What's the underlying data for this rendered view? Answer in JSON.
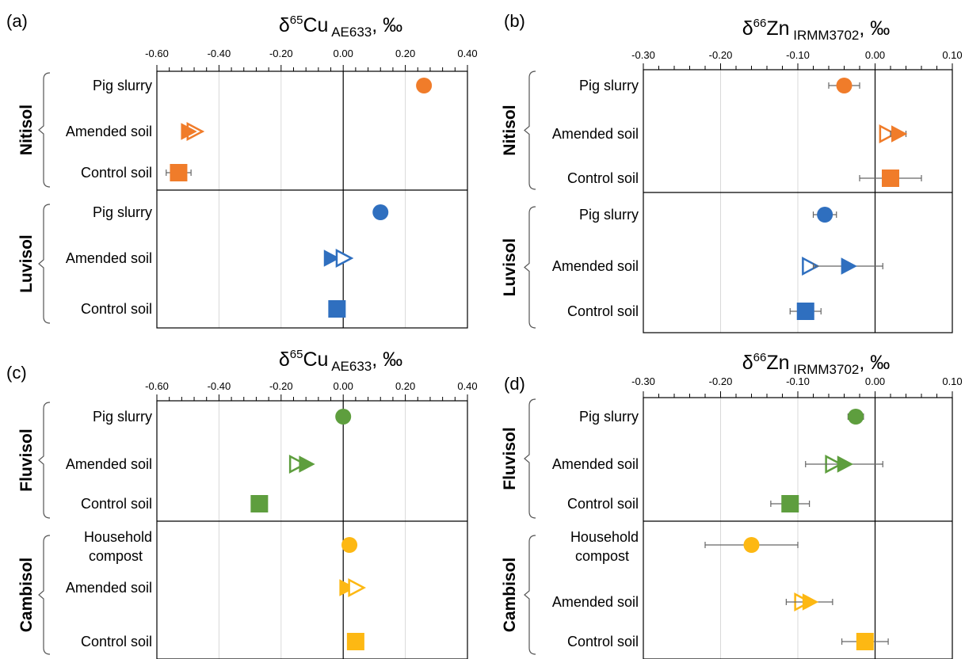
{
  "chart_data": [
    {
      "type": "scatter",
      "panel": "(a)",
      "xlabel": {
        "symbol": "δ",
        "sup": "65",
        "base": "Cu",
        "sub": "AE633",
        "unit": ", ‰"
      },
      "xlim": [
        -0.6,
        0.4
      ],
      "xticks": [
        "-0.60",
        "-0.40",
        "-0.20",
        "0.00",
        "0.20",
        "0.40"
      ],
      "grid": true,
      "groups": [
        {
          "name": "Nitisol",
          "color": "#F07C2A",
          "items": [
            {
              "label": [
                "Pig slurry"
              ],
              "points": [
                {
                  "x": 0.26,
                  "marker": "circle",
                  "err": 0.0
                }
              ]
            },
            {
              "label": [
                "Amended soil"
              ],
              "points": [
                {
                  "x": -0.48,
                  "marker": "triangle-open",
                  "err": 0.0
                },
                {
                  "x": -0.5,
                  "marker": "triangle-filled",
                  "err": 0.0
                }
              ]
            },
            {
              "label": [
                "Control soil"
              ],
              "points": [
                {
                  "x": -0.53,
                  "marker": "square",
                  "err": 0.04
                }
              ]
            }
          ]
        },
        {
          "name": "Luvisol",
          "color": "#2F6FBF",
          "items": [
            {
              "label": [
                "Pig slurry"
              ],
              "points": [
                {
                  "x": 0.12,
                  "marker": "circle",
                  "err": 0.02
                }
              ]
            },
            {
              "label": [
                "Amended soil"
              ],
              "points": [
                {
                  "x": -0.04,
                  "marker": "triangle-filled",
                  "err": 0.0
                },
                {
                  "x": -0.0,
                  "marker": "triangle-open",
                  "err": 0.0
                }
              ]
            },
            {
              "label": [
                "Control soil"
              ],
              "points": [
                {
                  "x": -0.02,
                  "marker": "square",
                  "err": 0.0
                }
              ]
            }
          ]
        }
      ]
    },
    {
      "type": "scatter",
      "panel": "(b)",
      "xlabel": {
        "symbol": "δ",
        "sup": "66",
        "base": "Zn",
        "sub": "IRMM3702",
        "unit": ", ‰"
      },
      "xlim": [
        -0.3,
        0.1
      ],
      "xticks": [
        "-0.30",
        "-0.20",
        "-0.10",
        "0.00",
        "0.10"
      ],
      "grid": true,
      "groups": [
        {
          "name": "Nitisol",
          "color": "#F07C2A",
          "items": [
            {
              "label": [
                "Pig slurry"
              ],
              "points": [
                {
                  "x": -0.04,
                  "marker": "circle",
                  "err": 0.02
                }
              ]
            },
            {
              "label": [
                "Amended soil"
              ],
              "points": [
                {
                  "x": 0.015,
                  "marker": "triangle-open",
                  "err": 0.0
                },
                {
                  "x": 0.03,
                  "marker": "triangle-filled",
                  "err": 0.01
                }
              ]
            },
            {
              "label": [
                "Control soil"
              ],
              "points": [
                {
                  "x": 0.02,
                  "marker": "square",
                  "err": 0.04
                }
              ]
            }
          ]
        },
        {
          "name": "Luvisol",
          "color": "#2F6FBF",
          "items": [
            {
              "label": [
                "Pig slurry"
              ],
              "points": [
                {
                  "x": -0.065,
                  "marker": "circle",
                  "err": 0.015
                }
              ]
            },
            {
              "label": [
                "Amended soil"
              ],
              "points": [
                {
                  "x": -0.085,
                  "marker": "triangle-open",
                  "err": 0.005
                },
                {
                  "x": -0.035,
                  "marker": "triangle-filled",
                  "err": 0.045
                }
              ]
            },
            {
              "label": [
                "Control soil"
              ],
              "points": [
                {
                  "x": -0.09,
                  "marker": "square",
                  "err": 0.02
                }
              ]
            }
          ]
        }
      ]
    },
    {
      "type": "scatter",
      "panel": "(c)",
      "xlabel": {
        "symbol": "δ",
        "sup": "65",
        "base": "Cu",
        "sub": "AE633",
        "unit": ", ‰"
      },
      "xlim": [
        -0.6,
        0.4
      ],
      "xticks": [
        "-0.60",
        "-0.40",
        "-0.20",
        "0.00",
        "0.20",
        "0.40"
      ],
      "grid": true,
      "groups": [
        {
          "name": "Fluvisol",
          "color": "#5E9E3E",
          "items": [
            {
              "label": [
                "Pig slurry"
              ],
              "points": [
                {
                  "x": 0.0,
                  "marker": "circle",
                  "err": 0.0
                }
              ]
            },
            {
              "label": [
                "Amended soil"
              ],
              "points": [
                {
                  "x": -0.15,
                  "marker": "triangle-open",
                  "err": 0.0
                },
                {
                  "x": -0.12,
                  "marker": "triangle-filled",
                  "err": 0.0
                }
              ]
            },
            {
              "label": [
                "Control soil"
              ],
              "points": [
                {
                  "x": -0.27,
                  "marker": "square",
                  "err": 0.0
                }
              ]
            }
          ]
        },
        {
          "name": "Cambisol",
          "color": "#FDB813",
          "items": [
            {
              "label": [
                "Household",
                "compost"
              ],
              "points": [
                {
                  "x": 0.02,
                  "marker": "circle",
                  "err": 0.0
                }
              ]
            },
            {
              "label": [
                "Amended soil"
              ],
              "points": [
                {
                  "x": 0.01,
                  "marker": "triangle-filled",
                  "err": 0.0
                },
                {
                  "x": 0.04,
                  "marker": "triangle-open",
                  "err": 0.0
                }
              ]
            },
            {
              "label": [
                "Control soil"
              ],
              "points": [
                {
                  "x": 0.04,
                  "marker": "square",
                  "err": 0.0
                }
              ]
            }
          ]
        }
      ]
    },
    {
      "type": "scatter",
      "panel": "(d)",
      "xlabel": {
        "symbol": "δ",
        "sup": "66",
        "base": "Zn",
        "sub": "IRMM3702",
        "unit": ", ‰"
      },
      "xlim": [
        -0.3,
        0.1
      ],
      "xticks": [
        "-0.30",
        "-0.20",
        "-0.10",
        "0.00",
        "0.10"
      ],
      "grid": true,
      "groups": [
        {
          "name": "Fluvisol",
          "color": "#5E9E3E",
          "items": [
            {
              "label": [
                "Pig slurry"
              ],
              "points": [
                {
                  "x": -0.025,
                  "marker": "circle",
                  "err": 0.01
                }
              ]
            },
            {
              "label": [
                "Amended soil"
              ],
              "points": [
                {
                  "x": -0.055,
                  "marker": "triangle-open",
                  "err": 0.0
                },
                {
                  "x": -0.04,
                  "marker": "triangle-filled",
                  "err": 0.05
                }
              ]
            },
            {
              "label": [
                "Control soil"
              ],
              "points": [
                {
                  "x": -0.11,
                  "marker": "square",
                  "err": 0.025
                }
              ]
            }
          ]
        },
        {
          "name": "Cambisol",
          "color": "#FDB813",
          "items": [
            {
              "label": [
                "Household",
                "compost"
              ],
              "points": [
                {
                  "x": -0.16,
                  "marker": "circle",
                  "err": 0.06
                }
              ]
            },
            {
              "label": [
                "Amended soil"
              ],
              "points": [
                {
                  "x": -0.095,
                  "marker": "triangle-open",
                  "err": 0.0
                },
                {
                  "x": -0.085,
                  "marker": "triangle-filled",
                  "err": 0.03
                }
              ]
            },
            {
              "label": [
                "Control soil"
              ],
              "points": [
                {
                  "x": -0.013,
                  "marker": "square",
                  "err": 0.03
                }
              ]
            }
          ]
        }
      ]
    }
  ]
}
